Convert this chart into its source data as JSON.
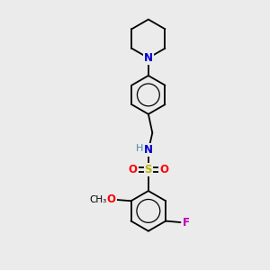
{
  "background_color": "#ebebeb",
  "bond_color": "#000000",
  "N_color": "#0000cc",
  "O_color": "#ff0000",
  "S_color": "#b8b800",
  "F_color": "#bb00bb",
  "H_color": "#4488aa",
  "figsize": [
    3.0,
    3.0
  ],
  "dpi": 100,
  "xlim": [
    0,
    10
  ],
  "ylim": [
    0,
    10
  ]
}
